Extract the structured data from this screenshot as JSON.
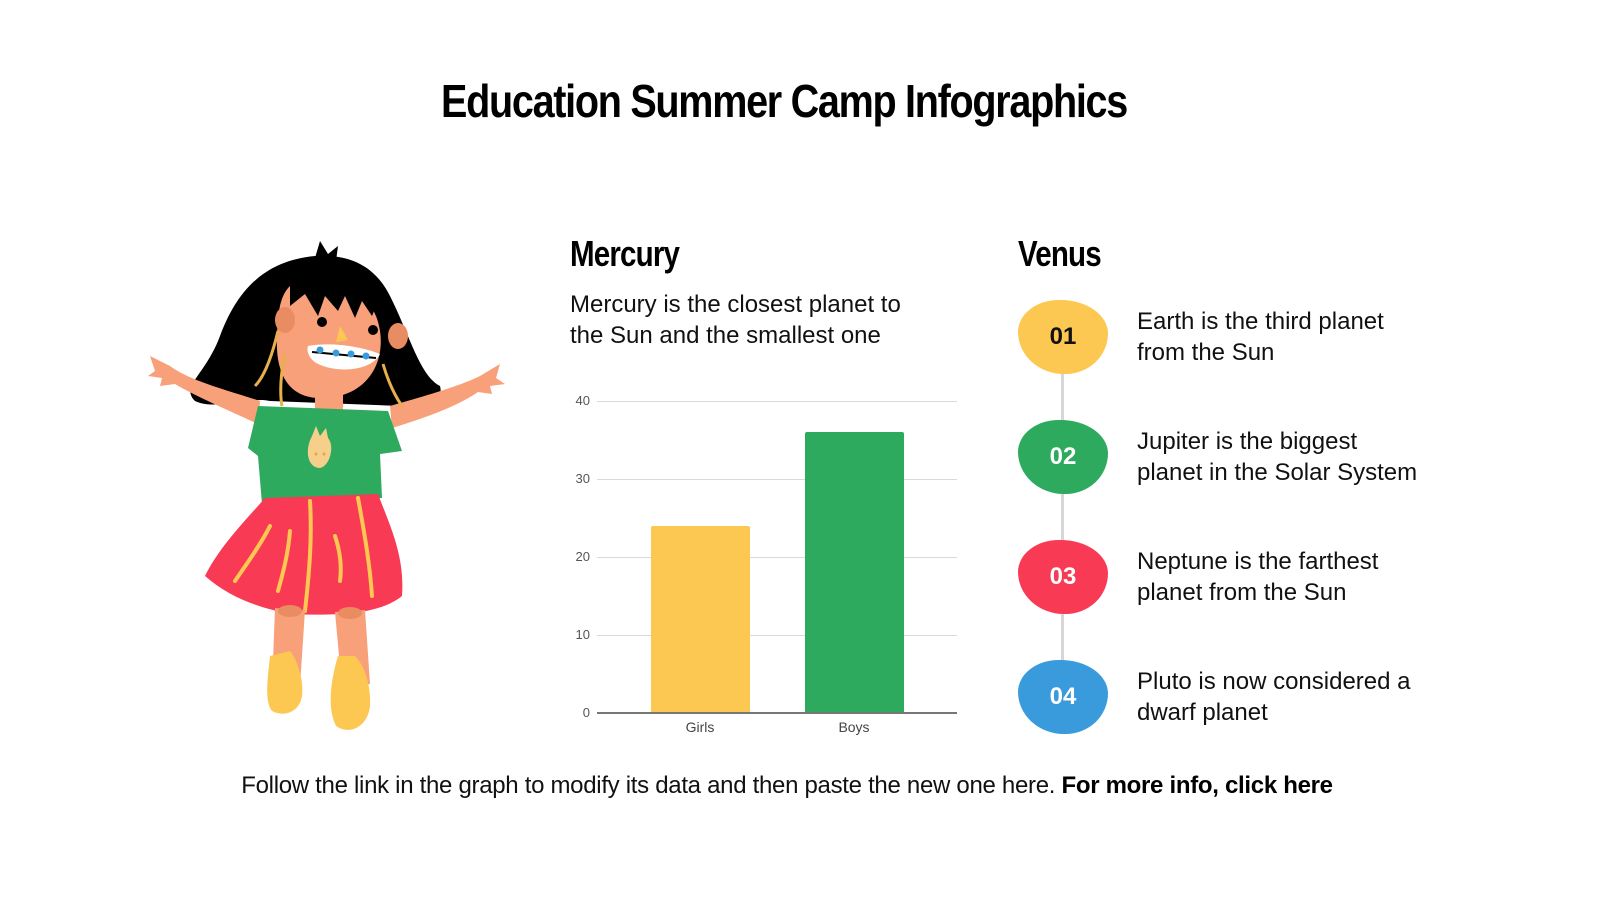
{
  "title": "Education Summer Camp Infographics",
  "illustration": {
    "description": "Cartoon girl with black hair, braces, green t-shirt with bunny, red skirt, yellow shoes, arms outstretched",
    "colors": {
      "hair": "#000000",
      "skin": "#F7A07A",
      "shirt": "#2EAA5F",
      "skirt": "#F93A55",
      "shoes": "#FCC852",
      "braces": "#3A9BDC"
    }
  },
  "mercury": {
    "heading": "Mercury",
    "description_line1": "Mercury is the closest planet to",
    "description_line2": "the Sun and the smallest one"
  },
  "venus": {
    "heading": "Venus",
    "items": [
      {
        "number": "01",
        "line1": "Earth is the third planet",
        "line2": "from the Sun",
        "color": "#FCC852",
        "text_color": "#111111"
      },
      {
        "number": "02",
        "line1": "Jupiter is the biggest",
        "line2": "planet in the Solar System",
        "color": "#2EAA5F",
        "text_color": "#FFFFFF"
      },
      {
        "number": "03",
        "line1": "Neptune is the farthest",
        "line2": "planet from the Sun",
        "color": "#F93A55",
        "text_color": "#FFFFFF"
      },
      {
        "number": "04",
        "line1": "Pluto is now considered a",
        "line2": "dwarf planet",
        "color": "#3A9BDC",
        "text_color": "#FFFFFF"
      }
    ]
  },
  "footer": {
    "text": "Follow the link in the graph to modify its data and then paste the new one here. ",
    "link": "For more info, click here"
  },
  "chart_data": {
    "type": "bar",
    "title": "",
    "xlabel": "",
    "ylabel": "",
    "categories": [
      "Girls",
      "Boys"
    ],
    "values": [
      24,
      36
    ],
    "colors": [
      "#FCC852",
      "#2EAA5F"
    ],
    "ylim": [
      0,
      40
    ],
    "yticks": [
      "40",
      "30",
      "20",
      "10",
      "0"
    ],
    "grid": true,
    "legend": "none"
  }
}
